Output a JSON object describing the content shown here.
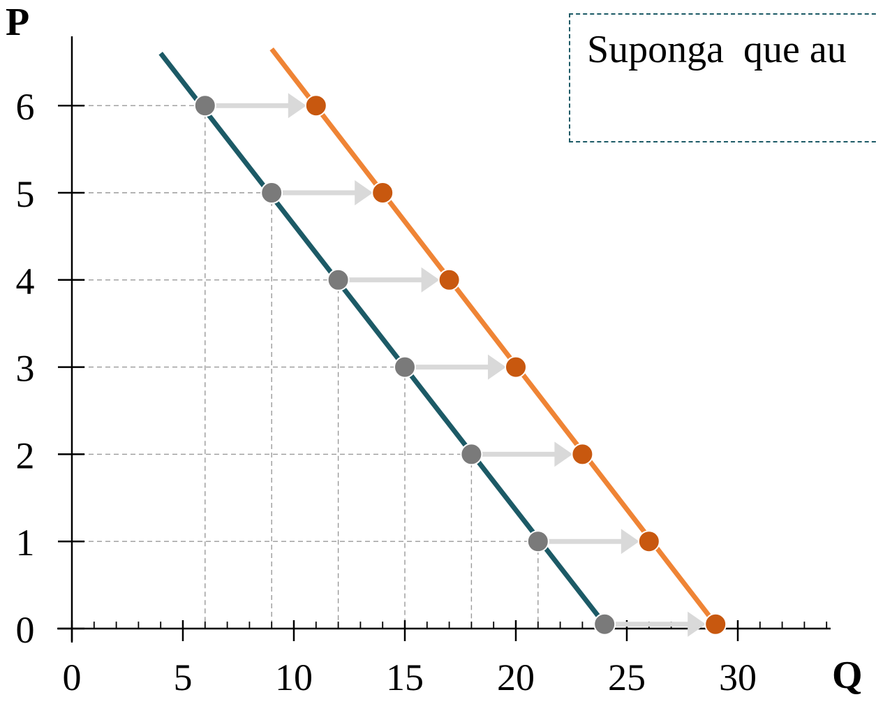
{
  "note": {
    "text": "Suponga  que au"
  },
  "chart_data": {
    "type": "line",
    "xlabel": "Q",
    "ylabel": "P",
    "xlim": [
      0,
      34
    ],
    "ylim": [
      0,
      6.7
    ],
    "xticks": [
      0,
      5,
      10,
      15,
      20,
      25,
      30
    ],
    "xtick_labels": [
      "0",
      "5",
      "10",
      "15",
      "20",
      "25",
      "30"
    ],
    "yticks": [
      0,
      1,
      2,
      3,
      4,
      5,
      6
    ],
    "ytick_labels": [
      "0",
      "1",
      "2",
      "3",
      "4",
      "5",
      "6"
    ],
    "minor_xtick_step": 1,
    "series": [
      {
        "color": "#1c5a66",
        "line": [
          [
            4,
            6.6
          ],
          [
            24,
            0.05
          ]
        ],
        "point_color": "#7a7a7a",
        "points": [
          [
            6,
            6
          ],
          [
            9,
            5
          ],
          [
            12,
            4
          ],
          [
            15,
            3
          ],
          [
            18,
            2
          ],
          [
            21,
            1
          ],
          [
            24,
            0.05
          ]
        ]
      },
      {
        "color": "#ef8435",
        "line": [
          [
            9,
            6.65
          ],
          [
            29,
            0.05
          ]
        ],
        "point_color": "#c8580f",
        "points": [
          [
            11,
            6
          ],
          [
            14,
            5
          ],
          [
            17,
            4
          ],
          [
            20,
            3
          ],
          [
            23,
            2
          ],
          [
            26,
            1
          ],
          [
            29,
            0.05
          ]
        ]
      }
    ],
    "shifts": [
      {
        "from": [
          6,
          6
        ],
        "to": [
          11,
          6
        ]
      },
      {
        "from": [
          9,
          5
        ],
        "to": [
          14,
          5
        ]
      },
      {
        "from": [
          12,
          4
        ],
        "to": [
          17,
          4
        ]
      },
      {
        "from": [
          15,
          3
        ],
        "to": [
          20,
          3
        ]
      },
      {
        "from": [
          18,
          2
        ],
        "to": [
          23,
          2
        ]
      },
      {
        "from": [
          21,
          1
        ],
        "to": [
          26,
          1
        ]
      },
      {
        "from": [
          24,
          0.05
        ],
        "to": [
          29,
          0.05
        ]
      }
    ],
    "guide_lines": {
      "horizontal": [
        [
          6,
          6
        ],
        [
          9,
          5
        ],
        [
          12,
          4
        ],
        [
          15,
          3
        ],
        [
          18,
          2
        ],
        [
          21,
          1
        ]
      ],
      "vertical": [
        [
          6,
          6
        ],
        [
          9,
          5
        ],
        [
          12,
          4
        ],
        [
          15,
          3
        ],
        [
          18,
          2
        ],
        [
          21,
          1
        ]
      ]
    },
    "grid": false,
    "arrow_color": "#d9d9d9",
    "guide_color": "#9a9a9a"
  }
}
